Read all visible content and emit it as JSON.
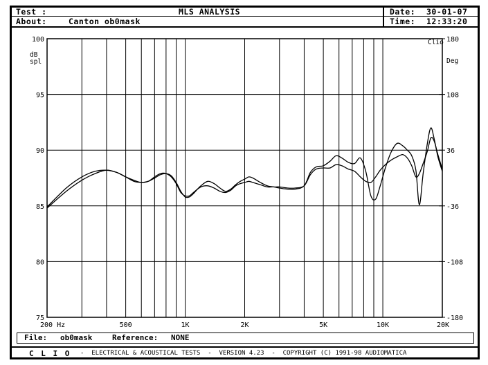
{
  "header": {
    "test_label": "Test :",
    "title": "MLS ANALYSIS",
    "date_label": "Date:",
    "date_value": "30-01-07",
    "about_label": "About:",
    "about_value": "Canton ob0mask",
    "time_label": "Time:",
    "time_value": "12:33:20"
  },
  "footer": {
    "file_label": "File:",
    "file_value": "ob0mask",
    "reference_label": "Reference:",
    "reference_value": "NONE",
    "brand": "C L I O",
    "info": "-  ELECTRICAL & ACOUSTICAL TESTS  -  VERSION 4.23  -  COPYRIGHT (C) 1991-98 AUDIOMATICA"
  },
  "chart_data": {
    "type": "line",
    "x_scale": "log",
    "xlim": [
      200,
      20000
    ],
    "ylim": [
      75,
      100
    ],
    "y2lim": [
      -180,
      180
    ],
    "grid": true,
    "ylabel": "dB spl",
    "y2label": "Deg",
    "top_right_label": "Clio",
    "x_tick_labels": [
      {
        "x": 200,
        "label": "200  Hz"
      },
      {
        "x": 500,
        "label": "500"
      },
      {
        "x": 1000,
        "label": "1K"
      },
      {
        "x": 2000,
        "label": "2K"
      },
      {
        "x": 5000,
        "label": "5K"
      },
      {
        "x": 10000,
        "label": "10K"
      },
      {
        "x": 20000,
        "label": "20K"
      }
    ],
    "x_gridlines": [
      200,
      300,
      400,
      500,
      600,
      700,
      800,
      900,
      1000,
      2000,
      3000,
      4000,
      5000,
      6000,
      7000,
      8000,
      9000,
      10000,
      20000
    ],
    "y_ticks": [
      75,
      80,
      85,
      90,
      95,
      100
    ],
    "y2_ticks": [
      -180,
      -108,
      -36,
      36,
      108,
      180
    ],
    "series": [
      {
        "values": [
          [
            200,
            84.8
          ],
          [
            250,
            86.3
          ],
          [
            300,
            87.3
          ],
          [
            350,
            87.9
          ],
          [
            400,
            88.2
          ],
          [
            450,
            88.0
          ],
          [
            500,
            87.6
          ],
          [
            550,
            87.2
          ],
          [
            600,
            87.1
          ],
          [
            650,
            87.2
          ],
          [
            700,
            87.5
          ],
          [
            750,
            87.8
          ],
          [
            800,
            87.9
          ],
          [
            850,
            87.7
          ],
          [
            900,
            87.1
          ],
          [
            950,
            86.3
          ],
          [
            1000,
            85.8
          ],
          [
            1050,
            85.8
          ],
          [
            1100,
            86.1
          ],
          [
            1200,
            86.8
          ],
          [
            1300,
            87.2
          ],
          [
            1400,
            87.0
          ],
          [
            1500,
            86.6
          ],
          [
            1600,
            86.3
          ],
          [
            1700,
            86.5
          ],
          [
            1800,
            86.9
          ],
          [
            1900,
            87.2
          ],
          [
            2000,
            87.4
          ],
          [
            2100,
            87.6
          ],
          [
            2200,
            87.5
          ],
          [
            2400,
            87.1
          ],
          [
            2600,
            86.8
          ],
          [
            2800,
            86.7
          ],
          [
            3000,
            86.7
          ],
          [
            3300,
            86.6
          ],
          [
            3600,
            86.6
          ],
          [
            4000,
            86.8
          ],
          [
            4300,
            87.8
          ],
          [
            4600,
            88.3
          ],
          [
            5000,
            88.4
          ],
          [
            5400,
            88.4
          ],
          [
            5800,
            88.7
          ],
          [
            6200,
            88.6
          ],
          [
            6700,
            88.3
          ],
          [
            7200,
            88.1
          ],
          [
            7700,
            87.6
          ],
          [
            8200,
            87.2
          ],
          [
            8700,
            87.1
          ],
          [
            9200,
            87.6
          ],
          [
            9700,
            88.2
          ],
          [
            10300,
            88.7
          ],
          [
            11000,
            89.1
          ],
          [
            11800,
            89.4
          ],
          [
            12600,
            89.6
          ],
          [
            13300,
            89.3
          ],
          [
            14000,
            88.6
          ],
          [
            14700,
            87.6
          ],
          [
            15300,
            87.9
          ],
          [
            16000,
            88.8
          ],
          [
            16800,
            89.9
          ],
          [
            17500,
            91.1
          ],
          [
            18200,
            90.8
          ],
          [
            19000,
            89.6
          ],
          [
            20000,
            88.3
          ]
        ]
      },
      {
        "values": [
          [
            200,
            84.9
          ],
          [
            250,
            86.6
          ],
          [
            300,
            87.6
          ],
          [
            350,
            88.1
          ],
          [
            400,
            88.2
          ],
          [
            450,
            88.0
          ],
          [
            500,
            87.6
          ],
          [
            550,
            87.3
          ],
          [
            600,
            87.1
          ],
          [
            650,
            87.2
          ],
          [
            700,
            87.6
          ],
          [
            750,
            87.9
          ],
          [
            800,
            87.9
          ],
          [
            850,
            87.6
          ],
          [
            900,
            87.0
          ],
          [
            950,
            86.2
          ],
          [
            1000,
            85.9
          ],
          [
            1050,
            85.9
          ],
          [
            1100,
            86.2
          ],
          [
            1200,
            86.7
          ],
          [
            1300,
            86.8
          ],
          [
            1400,
            86.6
          ],
          [
            1500,
            86.3
          ],
          [
            1600,
            86.2
          ],
          [
            1700,
            86.4
          ],
          [
            1800,
            86.8
          ],
          [
            1900,
            87.0
          ],
          [
            2000,
            87.1
          ],
          [
            2100,
            87.2
          ],
          [
            2200,
            87.1
          ],
          [
            2400,
            86.9
          ],
          [
            2600,
            86.7
          ],
          [
            2800,
            86.7
          ],
          [
            3000,
            86.6
          ],
          [
            3300,
            86.5
          ],
          [
            3600,
            86.5
          ],
          [
            4000,
            86.8
          ],
          [
            4300,
            88.0
          ],
          [
            4600,
            88.5
          ],
          [
            5000,
            88.6
          ],
          [
            5400,
            89.0
          ],
          [
            5800,
            89.5
          ],
          [
            6200,
            89.3
          ],
          [
            6700,
            88.9
          ],
          [
            7200,
            88.8
          ],
          [
            7700,
            89.3
          ],
          [
            8200,
            88.1
          ],
          [
            8700,
            85.9
          ],
          [
            9200,
            85.6
          ],
          [
            9700,
            86.8
          ],
          [
            10300,
            88.4
          ],
          [
            11000,
            89.8
          ],
          [
            11800,
            90.6
          ],
          [
            12600,
            90.4
          ],
          [
            13300,
            90.0
          ],
          [
            14000,
            89.5
          ],
          [
            14700,
            88.2
          ],
          [
            15300,
            85.1
          ],
          [
            16000,
            87.9
          ],
          [
            16800,
            90.6
          ],
          [
            17500,
            92.0
          ],
          [
            18200,
            91.0
          ],
          [
            19000,
            89.4
          ],
          [
            20000,
            88.1
          ]
        ]
      }
    ]
  }
}
